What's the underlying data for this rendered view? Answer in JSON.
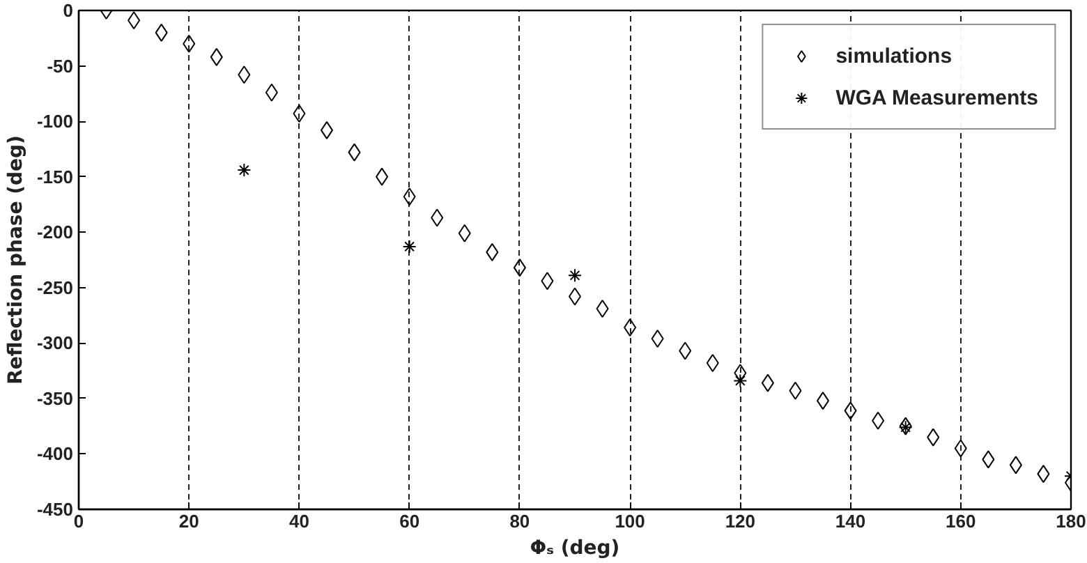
{
  "chart_data": {
    "type": "scatter",
    "xlabel": "Φₛ (deg)",
    "ylabel": "Reflection phase (deg)",
    "xlim": [
      0,
      180
    ],
    "ylim": [
      -450,
      0
    ],
    "xticks": [
      0,
      20,
      40,
      60,
      80,
      100,
      120,
      140,
      160,
      180
    ],
    "yticks": [
      -450,
      -400,
      -350,
      -300,
      -250,
      -200,
      -150,
      -100,
      -50,
      0
    ],
    "grid": "x",
    "legend": "top right",
    "series": [
      {
        "name": "simulations",
        "color": "#000000",
        "marker": "diamond",
        "x": [
          5,
          10,
          15,
          20,
          25,
          30,
          35,
          40,
          45,
          50,
          55,
          60,
          65,
          70,
          75,
          80,
          85,
          90,
          95,
          100,
          105,
          110,
          115,
          120,
          125,
          130,
          135,
          140,
          145,
          150,
          155,
          160,
          165,
          170,
          175,
          180
        ],
        "values": [
          0,
          -9,
          -20,
          -30,
          -42,
          -58,
          -74,
          -93,
          -108,
          -128,
          -150,
          -168,
          -187,
          -201,
          -218,
          -232,
          -244,
          -258,
          -269,
          -286,
          -296,
          -307,
          -318,
          -327,
          -336,
          -343,
          -352,
          -361,
          -370,
          -375,
          -385,
          -395,
          -405,
          -410,
          -418,
          -426
        ]
      },
      {
        "name": "WGA Measurements",
        "color": "#000000",
        "marker": "cross",
        "x": [
          30,
          60,
          90,
          120,
          150,
          180
        ],
        "values": [
          -144,
          -213,
          -239,
          -334,
          -376,
          -420
        ]
      }
    ]
  }
}
